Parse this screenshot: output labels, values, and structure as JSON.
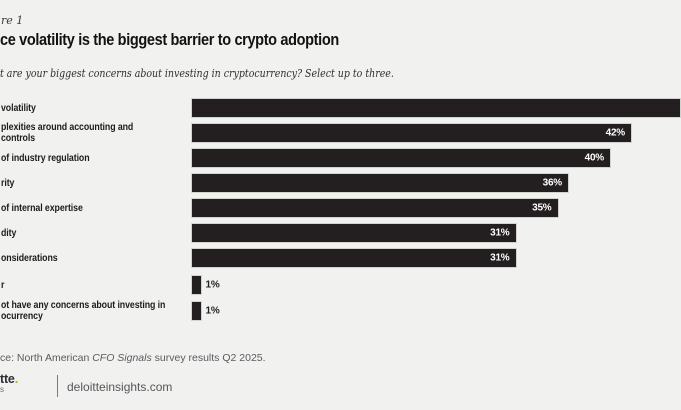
{
  "header": {
    "figure_label": "re 1",
    "title": "ce volatility is the biggest barrier to crypto adoption",
    "subtitle": "t are your biggest concerns about investing in cryptocurrency? Select up to three."
  },
  "chart_data": {
    "type": "bar",
    "orientation": "horizontal",
    "unit": "%",
    "value_axis_visible": false,
    "grid": false,
    "bar_color": "#231f20",
    "value_label_color": "#ffffff",
    "rows": [
      {
        "label": "volatility",
        "value_pct": null,
        "value_label": "",
        "clipped_at_right_edge": true
      },
      {
        "label": "plexities around accounting and controls",
        "value_pct": 42,
        "value_label": "42%",
        "clipped_at_right_edge": true
      },
      {
        "label": "of industry regulation",
        "value_pct": 40,
        "value_label": "40%",
        "clipped_at_right_edge": false
      },
      {
        "label": "rity",
        "value_pct": 36,
        "value_label": "36%",
        "clipped_at_right_edge": false
      },
      {
        "label": "of internal expertise",
        "value_pct": 35,
        "value_label": "35%",
        "clipped_at_right_edge": false
      },
      {
        "label": "dity",
        "value_pct": 31,
        "value_label": "31%",
        "clipped_at_right_edge": false
      },
      {
        "label": "onsiderations",
        "value_pct": 31,
        "value_label": "31%",
        "clipped_at_right_edge": false
      },
      {
        "label": "r",
        "value_pct": 1,
        "value_label": "1%",
        "clipped_at_right_edge": false
      },
      {
        "label": "ot have any concerns about investing in\nocurrency",
        "value_pct": 1,
        "value_label": "1%",
        "clipped_at_right_edge": false
      }
    ]
  },
  "source": {
    "prefix": "ce: North American ",
    "italic": "CFO Signals",
    "suffix": " survey results Q2 2025."
  },
  "footer": {
    "logo_line1": "tte",
    "logo_dot": ".",
    "logo_line2": "s",
    "site": "deloitteinsights.com"
  },
  "colors": {
    "background": "#f1f1ef",
    "bar": "#231f20",
    "logo_green": "#86bc25",
    "text_dark": "#1d1d1d",
    "text_gray": "#595c60"
  }
}
